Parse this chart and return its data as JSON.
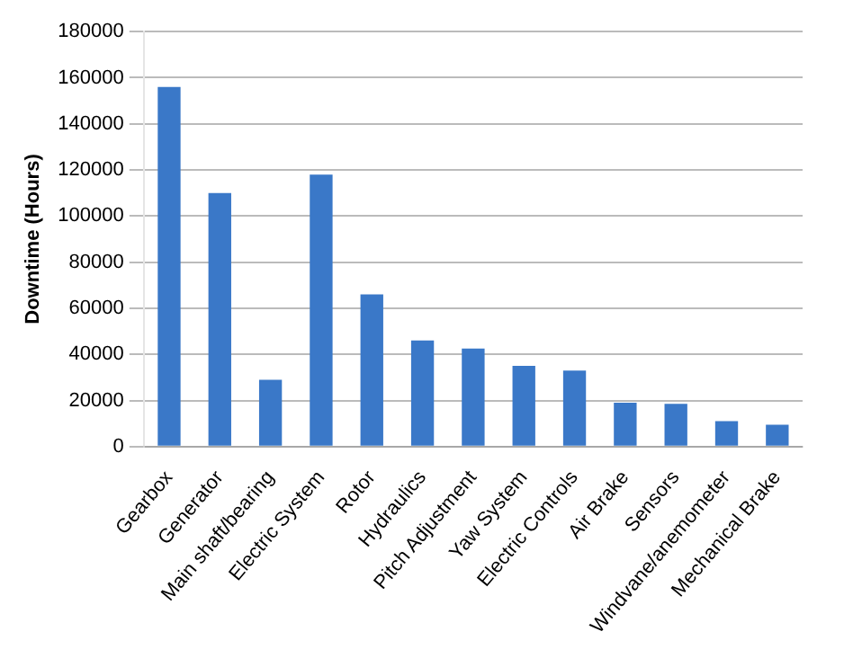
{
  "chart_data": {
    "type": "bar",
    "ylabel": "Downtime (Hours)",
    "categories": [
      "Gearbox",
      "Generator",
      "Main shaft/bearing",
      "Electric System",
      "Rotor",
      "Hydraulics",
      "Pitch Adjustment",
      "Yaw System",
      "Electric Controls",
      "Air Brake",
      "Sensors",
      "Windvane/anemometer",
      "Mechanical Brake"
    ],
    "values": [
      156000,
      110000,
      29000,
      118000,
      66000,
      46000,
      42500,
      35000,
      33000,
      19000,
      18500,
      11000,
      9500
    ],
    "color": "#3a78c8",
    "ylim": [
      0,
      180000
    ],
    "yticks": [
      0,
      20000,
      40000,
      60000,
      80000,
      100000,
      120000,
      140000,
      160000,
      180000
    ],
    "grid": "y",
    "legend": false
  }
}
